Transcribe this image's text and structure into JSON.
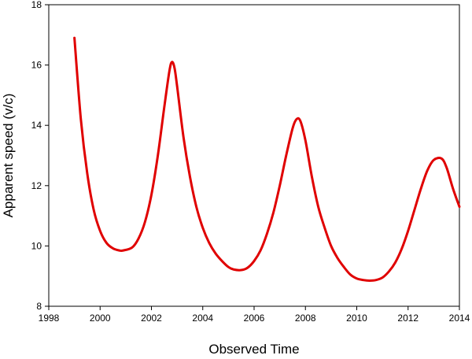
{
  "chart_data": {
    "type": "line",
    "title": "",
    "xlabel": "Observed Time",
    "ylabel": "Apparent speed (v/c)",
    "xlim": [
      1998,
      2014
    ],
    "ylim": [
      8,
      18
    ],
    "x_ticks": [
      1998,
      2000,
      2002,
      2004,
      2006,
      2008,
      2010,
      2012,
      2014
    ],
    "y_ticks": [
      8,
      10,
      12,
      14,
      16,
      18
    ],
    "grid": false,
    "legend": "none",
    "series": [
      {
        "color": "#e00000",
        "x": [
          1999.0,
          1999.25,
          1999.5,
          1999.75,
          2000.0,
          2000.25,
          2000.5,
          2000.75,
          2000.9,
          2001.25,
          2001.5,
          2001.75,
          2002.0,
          2002.25,
          2002.5,
          2002.7,
          2002.8,
          2002.9,
          2003.0,
          2003.25,
          2003.5,
          2003.75,
          2004.0,
          2004.25,
          2004.5,
          2004.75,
          2005.0,
          2005.2,
          2005.5,
          2005.75,
          2006.0,
          2006.25,
          2006.5,
          2006.75,
          2007.0,
          2007.25,
          2007.5,
          2007.65,
          2007.8,
          2008.0,
          2008.25,
          2008.5,
          2008.75,
          2009.0,
          2009.25,
          2009.5,
          2009.75,
          2010.0,
          2010.25,
          2010.5,
          2010.75,
          2011.0,
          2011.25,
          2011.5,
          2011.75,
          2012.0,
          2012.25,
          2012.5,
          2012.75,
          2013.0,
          2013.3,
          2013.5,
          2013.75,
          2014.0
        ],
        "y": [
          16.9,
          14.2,
          12.4,
          11.2,
          10.5,
          10.1,
          9.92,
          9.85,
          9.85,
          9.95,
          10.25,
          10.8,
          11.7,
          13.0,
          14.6,
          15.8,
          16.1,
          15.9,
          15.3,
          13.6,
          12.3,
          11.3,
          10.6,
          10.1,
          9.75,
          9.5,
          9.3,
          9.22,
          9.2,
          9.28,
          9.5,
          9.85,
          10.4,
          11.1,
          12.0,
          13.0,
          13.9,
          14.2,
          14.15,
          13.5,
          12.3,
          11.3,
          10.6,
          10.0,
          9.6,
          9.3,
          9.05,
          8.92,
          8.87,
          8.85,
          8.87,
          8.95,
          9.15,
          9.45,
          9.9,
          10.5,
          11.2,
          11.9,
          12.5,
          12.85,
          12.9,
          12.6,
          11.9,
          11.3
        ]
      }
    ]
  }
}
